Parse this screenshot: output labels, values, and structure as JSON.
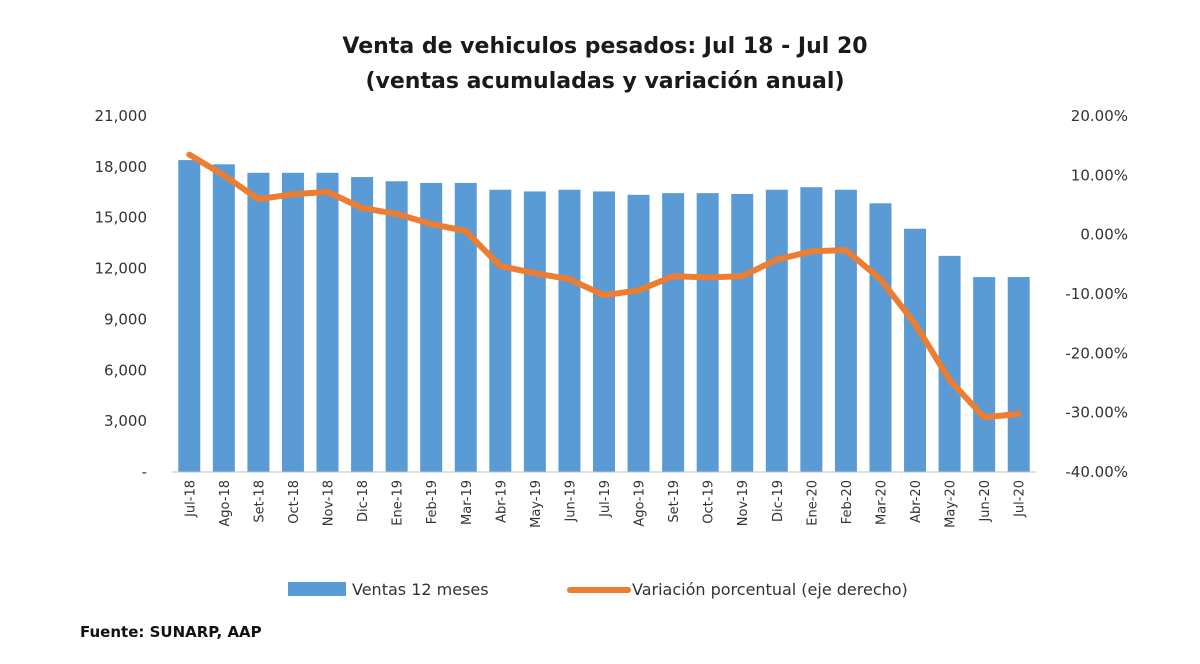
{
  "chart_data": {
    "type": "bar+line",
    "title_lines": [
      "Venta de vehiculos pesados: Jul 18 - Jul 20",
      "(ventas acumuladas y variación anual)"
    ],
    "categories": [
      "Jul-18",
      "Ago-18",
      "Set-18",
      "Oct-18",
      "Nov-18",
      "Dic-18",
      "Ene-19",
      "Feb-19",
      "Mar-19",
      "Abr-19",
      "May-19",
      "Jun-19",
      "Jul-19",
      "Ago-19",
      "Set-19",
      "Oct-19",
      "Nov-19",
      "Dic-19",
      "Ene-20",
      "Feb-20",
      "Mar-20",
      "Abr-20",
      "May-20",
      "Jun-20",
      "Jul-20"
    ],
    "left_axis": {
      "ylim": [
        0,
        21000
      ],
      "ticks": [
        0,
        3000,
        6000,
        9000,
        12000,
        15000,
        18000,
        21000
      ],
      "tick_labels": [
        "-",
        "3,000",
        "6,000",
        "9,000",
        "12,000",
        "15,000",
        "18,000",
        "21,000"
      ]
    },
    "right_axis": {
      "ylim": [
        -40,
        20
      ],
      "ticks": [
        20,
        10,
        0,
        -10,
        -20,
        -30,
        -40
      ],
      "tick_labels": [
        "20.00%",
        "10.00%",
        "0.00%",
        "-10.00%",
        "-20.00%",
        "-30.00%",
        "-40.00%"
      ]
    },
    "series": [
      {
        "name": "Ventas 12 meses",
        "kind": "bar",
        "axis": "left",
        "color": "#5b9bd5",
        "values": [
          18400,
          18150,
          17650,
          17650,
          17650,
          17400,
          17150,
          17050,
          17050,
          16650,
          16550,
          16650,
          16550,
          16350,
          16450,
          16450,
          16400,
          16650,
          16800,
          16650,
          15850,
          14350,
          12750,
          11500,
          11500
        ]
      },
      {
        "name": "Variación porcentual (eje derecho)",
        "kind": "line",
        "axis": "right",
        "color": "#ed7d31",
        "values": [
          13.5,
          10.0,
          6.0,
          6.8,
          7.2,
          4.5,
          3.5,
          1.8,
          0.6,
          -5.3,
          -6.5,
          -7.5,
          -10.2,
          -9.4,
          -7.0,
          -7.2,
          -7.0,
          -4.2,
          -2.8,
          -2.6,
          -7.5,
          -15.0,
          -24.5,
          -30.8,
          -30.2
        ]
      }
    ],
    "legend": [
      "Ventas 12 meses",
      "Variación porcentual (eje derecho)"
    ],
    "legend_position": "bottom",
    "grid": false
  },
  "source": "Fuente: SUNARP, AAP"
}
